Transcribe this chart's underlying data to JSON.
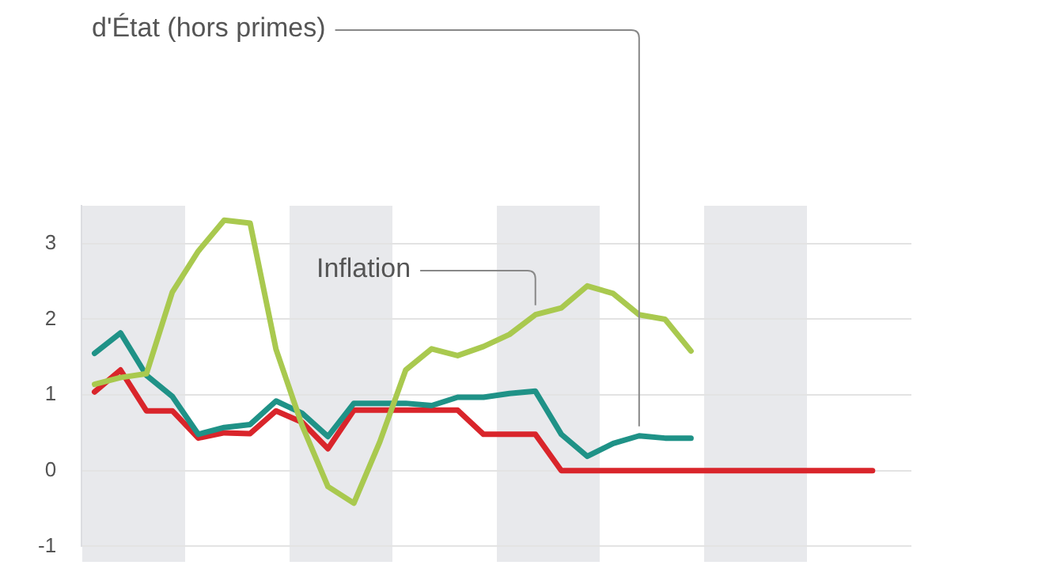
{
  "chart_data": {
    "type": "line",
    "categories": [
      null,
      null,
      null,
      null,
      null,
      null,
      null,
      null,
      null,
      null,
      null,
      null,
      null,
      null,
      null,
      null,
      null,
      null,
      null,
      null,
      null,
      null,
      null,
      null,
      null,
      null,
      null,
      null,
      null,
      null,
      null,
      null
    ],
    "series": [
      {
        "name": "Inflation",
        "color": "#a9c94f",
        "values": [
          1.14,
          1.23,
          1.28,
          2.36,
          2.9,
          3.31,
          3.27,
          1.6,
          0.6,
          -0.21,
          -0.43,
          0.38,
          1.33,
          1.61,
          1.52,
          1.64,
          1.8,
          2.06,
          2.15,
          2.44,
          2.34,
          2.06,
          2.0,
          1.58,
          null,
          null,
          null,
          null,
          null,
          null,
          null,
          null
        ]
      },
      {
        "name": "d'État (hors primes)",
        "color": "#1f9287",
        "values": [
          1.55,
          1.82,
          1.26,
          0.98,
          0.48,
          0.57,
          0.61,
          0.92,
          0.76,
          0.45,
          0.89,
          0.89,
          0.89,
          0.86,
          0.97,
          0.97,
          1.02,
          1.05,
          0.48,
          0.19,
          0.36,
          0.46,
          0.43,
          0.43,
          null,
          null,
          null,
          null,
          null,
          null,
          null,
          null
        ]
      },
      {
        "color": "#d9252b",
        "values": [
          1.04,
          1.33,
          0.79,
          0.79,
          0.43,
          0.5,
          0.49,
          0.79,
          0.64,
          0.29,
          0.8,
          0.8,
          0.8,
          0.8,
          0.8,
          0.48,
          0.48,
          0.48,
          0,
          0,
          0,
          0,
          0,
          0,
          0,
          0,
          0,
          0,
          0,
          0,
          0,
          null
        ]
      }
    ],
    "ylim": [
      -1,
      3.5
    ],
    "yticks": [
      -1,
      0,
      1,
      2,
      3
    ],
    "grid": "y",
    "legend": false,
    "marker": "none",
    "line_style": "solid",
    "tick_labels": "y"
  }
}
